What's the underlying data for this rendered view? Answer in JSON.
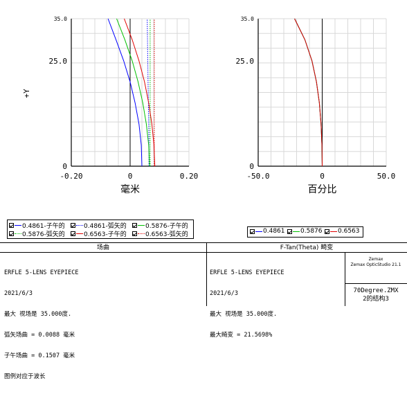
{
  "chart_data": [
    {
      "type": "line",
      "title": "场曲",
      "xlabel": "毫米",
      "ylabel": "+Y",
      "xlim": [
        -0.2,
        0.2
      ],
      "ylim": [
        0,
        35
      ],
      "x_ticks": [
        "-0.20",
        "0",
        "0.20"
      ],
      "y_ticks": [
        "0",
        "25.0",
        "35.0"
      ],
      "grid": true,
      "series": [
        {
          "name": "0.4861-子午的",
          "color": "#0000ff",
          "dash": "solid",
          "x": [
            0.04,
            0.038,
            0.03,
            0.017,
            0.0,
            -0.022,
            -0.048,
            -0.075
          ],
          "y": [
            0,
            5,
            10,
            15,
            20,
            25,
            30,
            35
          ]
        },
        {
          "name": "0.4861-弧矢的",
          "color": "#0000ff",
          "dash": "dotted",
          "x": [
            0.064,
            0.064,
            0.063,
            0.062,
            0.061,
            0.06,
            0.059,
            0.058
          ],
          "y": [
            0,
            5,
            10,
            15,
            20,
            25,
            30,
            35
          ]
        },
        {
          "name": "0.5876-子午的",
          "color": "#00c000",
          "dash": "solid",
          "x": [
            0.066,
            0.063,
            0.055,
            0.043,
            0.027,
            0.007,
            -0.018,
            -0.046
          ],
          "y": [
            0,
            5,
            10,
            15,
            20,
            25,
            30,
            35
          ]
        },
        {
          "name": "0.5876-弧矢的",
          "color": "#00c000",
          "dash": "dotted",
          "x": [
            0.068,
            0.068,
            0.068,
            0.068,
            0.068,
            0.068,
            0.068,
            0.068
          ],
          "y": [
            0,
            5,
            10,
            15,
            20,
            25,
            30,
            35
          ]
        },
        {
          "name": "0.6563-子午的",
          "color": "#e00000",
          "dash": "solid",
          "x": [
            0.084,
            0.081,
            0.074,
            0.063,
            0.049,
            0.03,
            0.007,
            -0.02
          ],
          "y": [
            0,
            5,
            10,
            15,
            20,
            25,
            30,
            35
          ]
        },
        {
          "name": "0.6563-弧矢的",
          "color": "#e00000",
          "dash": "dotted",
          "x": [
            0.082,
            0.082,
            0.082,
            0.082,
            0.082,
            0.082,
            0.082,
            0.082
          ],
          "y": [
            0,
            5,
            10,
            15,
            20,
            25,
            30,
            35
          ]
        }
      ]
    },
    {
      "type": "line",
      "title": "F-Tan(Theta) 畸变",
      "xlabel": "百分比",
      "ylabel": "",
      "xlim": [
        -50,
        50
      ],
      "ylim": [
        0,
        35
      ],
      "x_ticks": [
        "-50.0",
        "0",
        "50.0"
      ],
      "y_ticks": [
        "0",
        "25.0",
        "35.0"
      ],
      "grid": true,
      "series": [
        {
          "name": "0.4861",
          "color": "#0000ff",
          "x": [
            0,
            -0.2,
            -0.9,
            -2.2,
            -4.5,
            -8.0,
            -13.5,
            -21.57
          ],
          "y": [
            0,
            5,
            10,
            15,
            20,
            25,
            30,
            35
          ]
        },
        {
          "name": "0.5876",
          "color": "#00c000",
          "x": [
            0,
            -0.2,
            -0.9,
            -2.2,
            -4.5,
            -8.0,
            -13.5,
            -21.57
          ],
          "y": [
            0,
            5,
            10,
            15,
            20,
            25,
            30,
            35
          ]
        },
        {
          "name": "0.6563",
          "color": "#e00000",
          "x": [
            0,
            -0.2,
            -0.9,
            -2.2,
            -4.5,
            -8.0,
            -13.5,
            -21.57
          ],
          "y": [
            0,
            5,
            10,
            15,
            20,
            25,
            30,
            35
          ]
        }
      ]
    }
  ],
  "legend_left": [
    {
      "label": "0.4861-子午的",
      "color": "#0000ff",
      "dash": "solid"
    },
    {
      "label": "0.4861-弧矢的",
      "color": "#0000ff",
      "dash": "dotted"
    },
    {
      "label": "0.5876-子午的",
      "color": "#00c000",
      "dash": "solid"
    },
    {
      "label": "0.5876-弧矢的",
      "color": "#00c000",
      "dash": "dotted"
    },
    {
      "label": "0.6563-子午的",
      "color": "#e00000",
      "dash": "solid"
    },
    {
      "label": "0.6563-弧矢的",
      "color": "#e00000",
      "dash": "dotted"
    }
  ],
  "legend_right": [
    {
      "label": "0.4861",
      "color": "#0000ff"
    },
    {
      "label": "0.5876",
      "color": "#00c000"
    },
    {
      "label": "0.6563",
      "color": "#e00000"
    }
  ],
  "bottom": {
    "left_title": "场曲",
    "left_lines": [
      "ERFLE 5-LENS EYEPIECE",
      "2021/6/3",
      "最大 视场是 35.000度.",
      "弧矢场曲 = 0.0088 毫米",
      "子午场曲 = 0.1507 毫米",
      "图例对应于波长"
    ],
    "right_title": "F-Tan(Theta) 畸变",
    "right_lines": [
      "ERFLE 5-LENS EYEPIECE",
      "2021/6/3",
      "最大 视场是 35.000度.",
      "最大畸变 = 21.5698%"
    ],
    "brand_line1": "Zemax",
    "brand_line2": "Zemax OpticStudio 21.1",
    "file_name": "70Degree.ZMX",
    "config": "2的结构3"
  }
}
